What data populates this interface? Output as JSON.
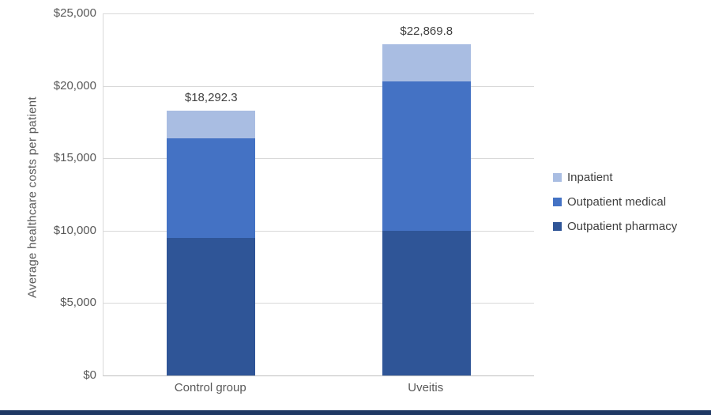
{
  "chart_data": {
    "type": "bar",
    "stacked": true,
    "title": "",
    "xlabel": "",
    "ylabel": "Average healthcare costs per patient",
    "ylim": [
      0,
      25000
    ],
    "grid": true,
    "legend_position": "right",
    "categories": [
      "Control group",
      "Uveitis"
    ],
    "series": [
      {
        "name": "Outpatient pharmacy",
        "color": "#2F5597",
        "values": [
          9500,
          10000
        ]
      },
      {
        "name": "Outpatient medical",
        "color": "#4472C4",
        "values": [
          6900,
          10300
        ]
      },
      {
        "name": "Inpatient",
        "color": "#A9BDE2",
        "values": [
          1892.3,
          2569.8
        ]
      }
    ],
    "totals": [
      18292.3,
      22869.8
    ],
    "total_labels": [
      "$18,292.3",
      "$22,869.8"
    ],
    "yticks": [
      {
        "value": 0,
        "label": "$0"
      },
      {
        "value": 5000,
        "label": "$5,000"
      },
      {
        "value": 10000,
        "label": "$10,000"
      },
      {
        "value": 15000,
        "label": "$15,000"
      },
      {
        "value": 20000,
        "label": "$20,000"
      },
      {
        "value": 25000,
        "label": "$25,000"
      }
    ],
    "legend": [
      "Inpatient",
      "Outpatient medical",
      "Outpatient pharmacy"
    ]
  },
  "colors": {
    "gridline": "#D9D9D9",
    "axis_line": "#BFBFBF",
    "tick_text": "#595959",
    "label_text": "#404040",
    "bottom_strip": "#1F3864",
    "background": "#FFFFFF"
  }
}
